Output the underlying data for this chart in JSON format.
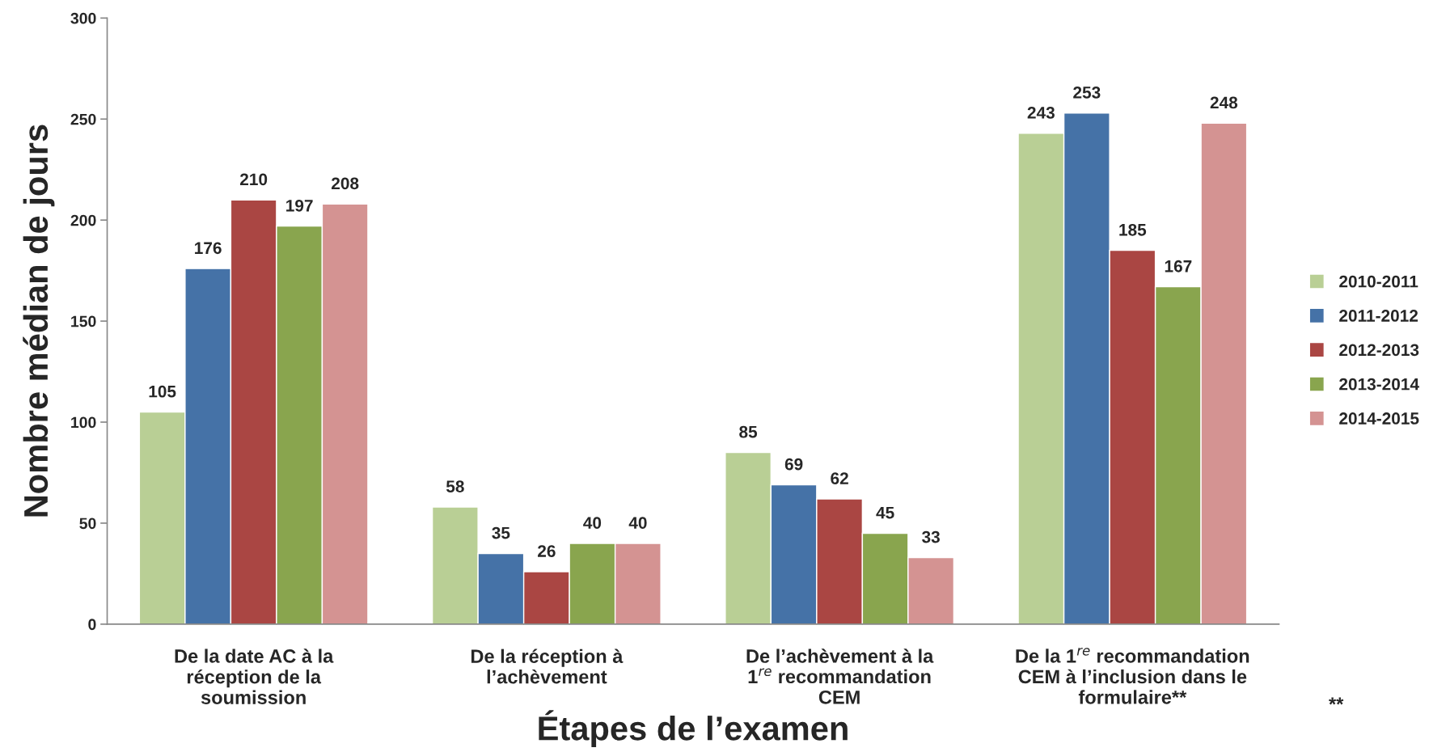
{
  "chart_data": {
    "type": "bar",
    "xlabel": "Étapes de l’examen",
    "ylabel": "Nombre médian de jours",
    "categories": [
      "De la date AC à la\nréception de la\nsoumission",
      "De la réception à\nl’achèvement",
      "De l’achèvement à la\n1$^{re}$ recommandation\nCEM",
      "De la 1$^{re}$ recommandation\nCEM à l’inclusion dans le\nformulaire**"
    ],
    "series": [
      {
        "name": "2010-2011",
        "color": "#b9cf95",
        "values": [
          105,
          58,
          85,
          243
        ]
      },
      {
        "name": "2011-2012",
        "color": "#4572a7",
        "values": [
          176,
          35,
          69,
          253
        ]
      },
      {
        "name": "2012-2013",
        "color": "#aa4643",
        "values": [
          210,
          26,
          62,
          185
        ]
      },
      {
        "name": "2013-2014",
        "color": "#89a54e",
        "values": [
          197,
          40,
          45,
          167
        ]
      },
      {
        "name": "2014-2015",
        "color": "#d49392",
        "values": [
          208,
          40,
          33,
          248
        ]
      }
    ],
    "ylim": [
      0,
      300
    ],
    "yticks": [
      0,
      50,
      100,
      150,
      200,
      250,
      300
    ],
    "data_labels": true,
    "legend": "right",
    "grid": false,
    "annotations": [
      "**"
    ]
  }
}
